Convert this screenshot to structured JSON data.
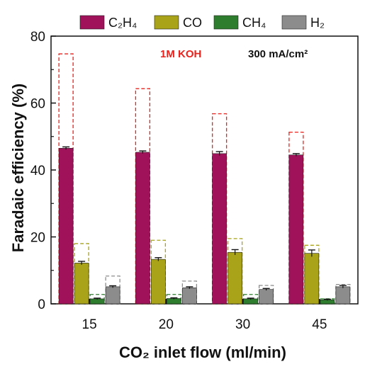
{
  "chart_data": {
    "type": "bar",
    "xlabel": "CO₂ inlet flow (ml/min)",
    "ylabel": "Faradaic efficiency (%)",
    "ylim": [
      0,
      80
    ],
    "yticks": [
      0,
      20,
      40,
      60,
      80
    ],
    "categories": [
      "15",
      "20",
      "30",
      "45"
    ],
    "legend_position": "top",
    "annotations": [
      "1M KOH",
      "300 mA/cm²"
    ],
    "series": [
      {
        "name": "C₂H₄",
        "color": "#a0125a",
        "values": [
          46.5,
          45.3,
          44.9,
          44.5
        ],
        "errors": [
          0.4,
          0.4,
          0.6,
          0.4
        ],
        "dashed_values": [
          74.7,
          64.3,
          56.8,
          51.3
        ],
        "dashed_color": "#e8231d"
      },
      {
        "name": "CO",
        "color": "#a9a319",
        "values": [
          12.2,
          13.3,
          15.4,
          15.1
        ],
        "errors": [
          0.5,
          0.5,
          0.8,
          1.0
        ],
        "dashed_values": [
          18.0,
          19.0,
          19.5,
          17.5
        ],
        "dashed_color": "#a9a319"
      },
      {
        "name": "CH₄",
        "color": "#2e7d2e",
        "values": [
          1.5,
          1.6,
          1.5,
          1.2
        ],
        "errors": [
          0.2,
          0.2,
          0.2,
          0.2
        ],
        "dashed_values": [
          2.8,
          2.8,
          2.8,
          1.5
        ],
        "dashed_color": "#2e7d2e"
      },
      {
        "name": "H₂",
        "color": "#8c8c8c",
        "values": [
          5.1,
          4.8,
          4.3,
          5.1
        ],
        "errors": [
          0.3,
          0.3,
          0.3,
          0.4
        ],
        "dashed_values": [
          8.3,
          6.8,
          5.5,
          5.8
        ],
        "dashed_color": "#8c8c8c"
      }
    ]
  }
}
